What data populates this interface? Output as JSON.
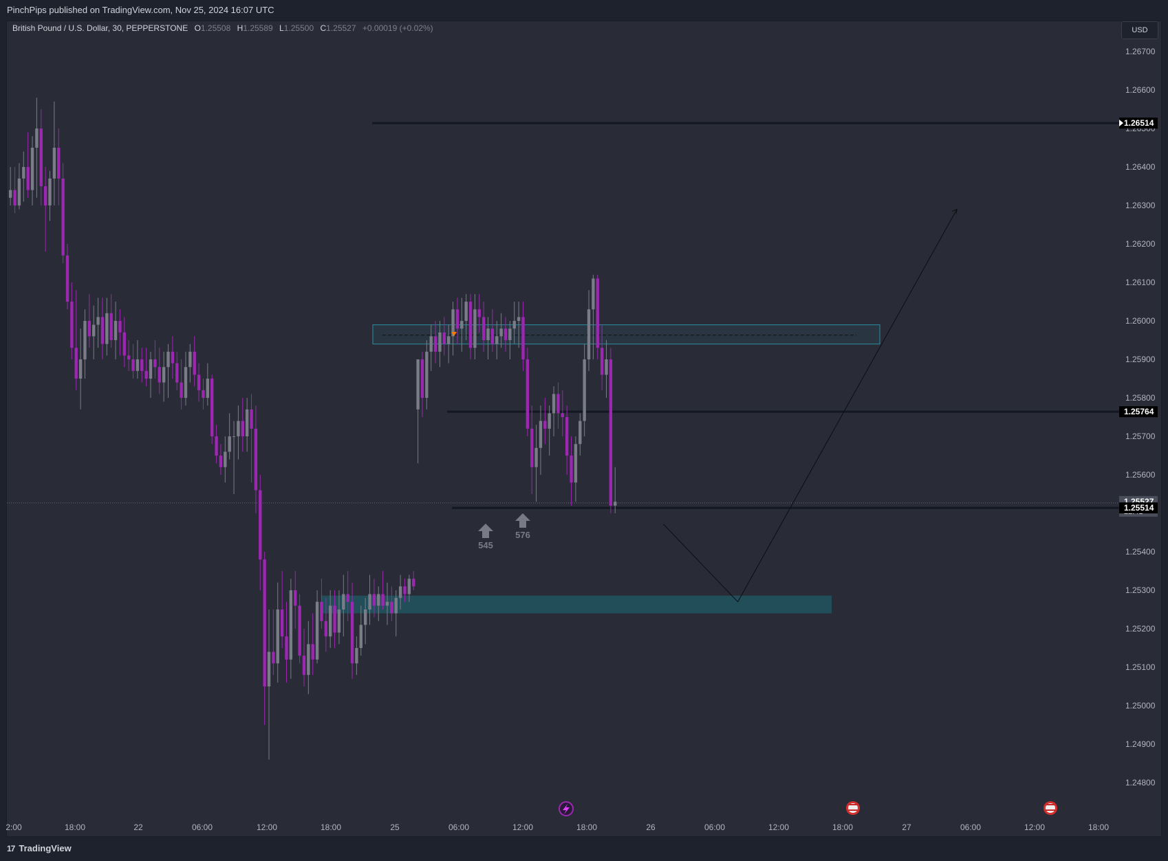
{
  "header": {
    "published": "PinchPips published on TradingView.com, Nov 25, 2024 16:07 UTC"
  },
  "legend": {
    "symbol": "British Pound / U.S. Dollar, 30, PEPPERSTONE",
    "open_label": "O",
    "open": "1.25508",
    "high_label": "H",
    "high": "1.25589",
    "low_label": "L",
    "low": "1.25500",
    "close_label": "C",
    "close": "1.25527",
    "change": "+0.00019 (+0.02%)"
  },
  "currency_button": "USD",
  "footer": {
    "brand": "TradingView",
    "logo": "17"
  },
  "colors": {
    "bull": "#7a7d87",
    "bear": "#9c27b0",
    "background": "#292c37",
    "zone": "#2a7f8f"
  },
  "chart_data": {
    "type": "candlestick",
    "symbol": "GBPUSD",
    "timeframe": "30",
    "ylim": [
      1.2475,
      1.2675
    ],
    "y_ticks": [
      "1.26700",
      "1.26600",
      "1.26500",
      "1.26400",
      "1.26300",
      "1.26200",
      "1.26100",
      "1.26000",
      "1.25900",
      "1.25800",
      "1.25700",
      "1.25600",
      "1.25500",
      "1.25400",
      "1.25300",
      "1.25200",
      "1.25100",
      "1.25000",
      "1.24900",
      "1.24800"
    ],
    "x_ticks": [
      "2:00",
      "18:00",
      "22",
      "06:00",
      "12:00",
      "18:00",
      "25",
      "06:00",
      "12:00",
      "18:00",
      "26",
      "06:00",
      "12:00",
      "18:00",
      "27",
      "06:00",
      "12:00",
      "18:00"
    ],
    "price_labels": [
      {
        "label": "1.26514",
        "price": 1.26514
      },
      {
        "label": "1.25764",
        "price": 1.25764
      },
      {
        "label": "1.25527",
        "sub": "22:41",
        "price": 1.25527
      },
      {
        "label": "1.25514",
        "price": 1.25514
      }
    ],
    "horizontal_lines": [
      1.26514,
      1.25764,
      1.25514
    ],
    "zones": [
      {
        "top": 1.2599,
        "bottom": 1.2594,
        "style": "outline"
      },
      {
        "top": 1.25286,
        "bottom": 1.2524,
        "style": "filled"
      }
    ],
    "projection_path": [
      {
        "bar": 149,
        "price": 1.25472
      },
      {
        "bar": 166,
        "price": 1.2527
      },
      {
        "bar": 216,
        "price": 1.2629
      }
    ],
    "markers": [
      {
        "label": "545",
        "bar": 129,
        "price": 1.255
      },
      {
        "label": "576",
        "bar": 139,
        "price": 1.2551
      }
    ],
    "candles": [
      [
        1.2632,
        1.264,
        1.263,
        1.2634
      ],
      [
        1.2634,
        1.264,
        1.2628,
        1.263
      ],
      [
        1.263,
        1.2641,
        1.2629,
        1.2637
      ],
      [
        1.2637,
        1.2644,
        1.2631,
        1.264
      ],
      [
        1.264,
        1.2649,
        1.2632,
        1.2634
      ],
      [
        1.2634,
        1.2648,
        1.263,
        1.2645
      ],
      [
        1.2645,
        1.2658,
        1.2632,
        1.265
      ],
      [
        1.265,
        1.2655,
        1.263,
        1.2635
      ],
      [
        1.2635,
        1.264,
        1.2618,
        1.263
      ],
      [
        1.263,
        1.2639,
        1.2626,
        1.2637
      ],
      [
        1.2637,
        1.2657,
        1.263,
        1.2645
      ],
      [
        1.2645,
        1.265,
        1.263,
        1.2637
      ],
      [
        1.2637,
        1.2641,
        1.2615,
        1.2617
      ],
      [
        1.2617,
        1.262,
        1.2603,
        1.2605
      ],
      [
        1.2605,
        1.261,
        1.259,
        1.2593
      ],
      [
        1.2593,
        1.2608,
        1.2582,
        1.2585
      ],
      [
        1.2585,
        1.2598,
        1.2577,
        1.259
      ],
      [
        1.259,
        1.2603,
        1.2585,
        1.26
      ],
      [
        1.26,
        1.2607,
        1.2593,
        1.2596
      ],
      [
        1.2596,
        1.2604,
        1.259,
        1.2599
      ],
      [
        1.2599,
        1.2606,
        1.2593,
        1.2601
      ],
      [
        1.2601,
        1.2606,
        1.259,
        1.2594
      ],
      [
        1.2594,
        1.2606,
        1.2591,
        1.2602
      ],
      [
        1.2602,
        1.2607,
        1.2593,
        1.2595
      ],
      [
        1.2595,
        1.2605,
        1.259,
        1.26
      ],
      [
        1.26,
        1.2603,
        1.2591,
        1.2597
      ],
      [
        1.2597,
        1.2601,
        1.2588,
        1.2591
      ],
      [
        1.2591,
        1.2595,
        1.2587,
        1.259
      ],
      [
        1.259,
        1.2594,
        1.2585,
        1.2587
      ],
      [
        1.2587,
        1.2595,
        1.2585,
        1.259
      ],
      [
        1.259,
        1.2593,
        1.2584,
        1.2587
      ],
      [
        1.2587,
        1.2593,
        1.2583,
        1.2585
      ],
      [
        1.2585,
        1.2592,
        1.258,
        1.259
      ],
      [
        1.259,
        1.2595,
        1.2585,
        1.2588
      ],
      [
        1.2588,
        1.2593,
        1.2581,
        1.2584
      ],
      [
        1.2584,
        1.2592,
        1.2579,
        1.2588
      ],
      [
        1.2588,
        1.2594,
        1.258,
        1.2592
      ],
      [
        1.2592,
        1.2596,
        1.2585,
        1.2589
      ],
      [
        1.2589,
        1.2592,
        1.2582,
        1.2584
      ],
      [
        1.2584,
        1.259,
        1.2577,
        1.258
      ],
      [
        1.258,
        1.2592,
        1.2578,
        1.2588
      ],
      [
        1.2588,
        1.2594,
        1.2584,
        1.2592
      ],
      [
        1.2592,
        1.2596,
        1.2583,
        1.2586
      ],
      [
        1.2586,
        1.2589,
        1.2579,
        1.2582
      ],
      [
        1.2582,
        1.2585,
        1.2577,
        1.258
      ],
      [
        1.258,
        1.2589,
        1.2578,
        1.2585
      ],
      [
        1.2585,
        1.2586,
        1.2568,
        1.257
      ],
      [
        1.257,
        1.2573,
        1.2563,
        1.2565
      ],
      [
        1.2565,
        1.2568,
        1.256,
        1.2562
      ],
      [
        1.2562,
        1.257,
        1.2558,
        1.2566
      ],
      [
        1.2566,
        1.2576,
        1.2564,
        1.257
      ],
      [
        1.257,
        1.2574,
        1.2555,
        1.257
      ],
      [
        1.257,
        1.2578,
        1.2564,
        1.2574
      ],
      [
        1.2574,
        1.258,
        1.2566,
        1.257
      ],
      [
        1.257,
        1.258,
        1.2566,
        1.2577
      ],
      [
        1.2577,
        1.2581,
        1.2558,
        1.2572
      ],
      [
        1.2572,
        1.2578,
        1.255,
        1.2556
      ],
      [
        1.2556,
        1.256,
        1.253,
        1.2538
      ],
      [
        1.2538,
        1.254,
        1.2495,
        1.2505
      ],
      [
        1.2505,
        1.2525,
        1.2486,
        1.2514
      ],
      [
        1.2514,
        1.2525,
        1.2508,
        1.2511
      ],
      [
        1.2511,
        1.2532,
        1.2506,
        1.2525
      ],
      [
        1.2525,
        1.2535,
        1.2515,
        1.2518
      ],
      [
        1.2518,
        1.2527,
        1.2506,
        1.2512
      ],
      [
        1.2512,
        1.2533,
        1.2507,
        1.253
      ],
      [
        1.253,
        1.2535,
        1.252,
        1.2526
      ],
      [
        1.2526,
        1.2529,
        1.2511,
        1.2513
      ],
      [
        1.2513,
        1.252,
        1.2505,
        1.2508
      ],
      [
        1.2508,
        1.2522,
        1.2503,
        1.2516
      ],
      [
        1.2516,
        1.2524,
        1.2508,
        1.2512
      ],
      [
        1.2512,
        1.253,
        1.2511,
        1.2527
      ],
      [
        1.2527,
        1.2533,
        1.252,
        1.2522
      ],
      [
        1.2522,
        1.2528,
        1.2514,
        1.2518
      ],
      [
        1.2518,
        1.253,
        1.2515,
        1.2526
      ],
      [
        1.2526,
        1.253,
        1.2515,
        1.2519
      ],
      [
        1.2519,
        1.253,
        1.2516,
        1.2525
      ],
      [
        1.2525,
        1.2534,
        1.2518,
        1.2529
      ],
      [
        1.2529,
        1.2535,
        1.2522,
        1.2527
      ],
      [
        1.2527,
        1.2532,
        1.2507,
        1.2511
      ],
      [
        1.2511,
        1.2518,
        1.2508,
        1.2515
      ],
      [
        1.2515,
        1.2526,
        1.2513,
        1.2521
      ],
      [
        1.2521,
        1.2528,
        1.2516,
        1.2525
      ],
      [
        1.2525,
        1.2534,
        1.2521,
        1.2529
      ],
      [
        1.2529,
        1.2533,
        1.2523,
        1.2526
      ],
      [
        1.2526,
        1.2531,
        1.2522,
        1.2529
      ],
      [
        1.2529,
        1.2535,
        1.2525,
        1.2526
      ],
      [
        1.2526,
        1.2532,
        1.2521,
        1.2527
      ],
      [
        1.2527,
        1.2531,
        1.2522,
        1.2524
      ],
      [
        1.2524,
        1.253,
        1.2518,
        1.2528
      ],
      [
        1.2528,
        1.2534,
        1.2525,
        1.2531
      ],
      [
        1.2531,
        1.2533,
        1.2527,
        1.2529
      ],
      [
        1.2529,
        1.2534,
        1.2527,
        1.2533
      ],
      [
        1.2533,
        1.2535,
        1.253,
        1.2531
      ],
      [
        1.2577,
        1.259,
        1.2563,
        1.259
      ],
      [
        1.259,
        1.2592,
        1.2575,
        1.258
      ],
      [
        1.258,
        1.2595,
        1.2577,
        1.2592
      ],
      [
        1.2592,
        1.2599,
        1.2587,
        1.2596
      ],
      [
        1.2596,
        1.26,
        1.2589,
        1.2592
      ],
      [
        1.2592,
        1.26,
        1.2588,
        1.2597
      ],
      [
        1.2597,
        1.2601,
        1.2591,
        1.2594
      ],
      [
        1.2594,
        1.2599,
        1.2589,
        1.2596
      ],
      [
        1.2596,
        1.2605,
        1.2591,
        1.2603
      ],
      [
        1.2603,
        1.2606,
        1.2594,
        1.2598
      ],
      [
        1.2598,
        1.2606,
        1.2592,
        1.26
      ],
      [
        1.26,
        1.2607,
        1.2595,
        1.2605
      ],
      [
        1.2605,
        1.2607,
        1.259,
        1.2593
      ],
      [
        1.2593,
        1.2607,
        1.259,
        1.2603
      ],
      [
        1.2603,
        1.2607,
        1.2597,
        1.2601
      ],
      [
        1.2601,
        1.2605,
        1.2592,
        1.2595
      ],
      [
        1.2595,
        1.2601,
        1.259,
        1.2598
      ],
      [
        1.2598,
        1.2603,
        1.2592,
        1.2594
      ],
      [
        1.2594,
        1.26,
        1.259,
        1.2596
      ],
      [
        1.2596,
        1.2602,
        1.2593,
        1.2598
      ],
      [
        1.2598,
        1.2601,
        1.2592,
        1.2595
      ],
      [
        1.2595,
        1.26,
        1.259,
        1.2598
      ],
      [
        1.2598,
        1.2605,
        1.2594,
        1.26
      ],
      [
        1.26,
        1.2605,
        1.2593,
        1.2601
      ],
      [
        1.2601,
        1.2605,
        1.2587,
        1.259
      ],
      [
        1.259,
        1.2593,
        1.257,
        1.2572
      ],
      [
        1.2572,
        1.2578,
        1.2555,
        1.2562
      ],
      [
        1.2562,
        1.2573,
        1.2553,
        1.2567
      ],
      [
        1.2567,
        1.2578,
        1.256,
        1.2574
      ],
      [
        1.2574,
        1.258,
        1.2568,
        1.2572
      ],
      [
        1.2572,
        1.2578,
        1.2565,
        1.2576
      ],
      [
        1.2576,
        1.2583,
        1.257,
        1.2581
      ],
      [
        1.2581,
        1.2584,
        1.2572,
        1.2576
      ],
      [
        1.2576,
        1.2582,
        1.257,
        1.2575
      ],
      [
        1.2575,
        1.2578,
        1.256,
        1.2565
      ],
      [
        1.2565,
        1.257,
        1.2552,
        1.2558
      ],
      [
        1.2558,
        1.257,
        1.2553,
        1.2568
      ],
      [
        1.2568,
        1.2576,
        1.2565,
        1.2574
      ],
      [
        1.2574,
        1.2594,
        1.257,
        1.259
      ],
      [
        1.259,
        1.2608,
        1.2587,
        1.2603
      ],
      [
        1.2603,
        1.2612,
        1.259,
        1.2611
      ],
      [
        1.2611,
        1.2612,
        1.259,
        1.2593
      ],
      [
        1.2593,
        1.2599,
        1.2582,
        1.2586
      ],
      [
        1.2586,
        1.2595,
        1.258,
        1.259
      ],
      [
        1.259,
        1.2593,
        1.255,
        1.2552
      ],
      [
        1.2552,
        1.2562,
        1.255,
        1.2553
      ]
    ]
  }
}
